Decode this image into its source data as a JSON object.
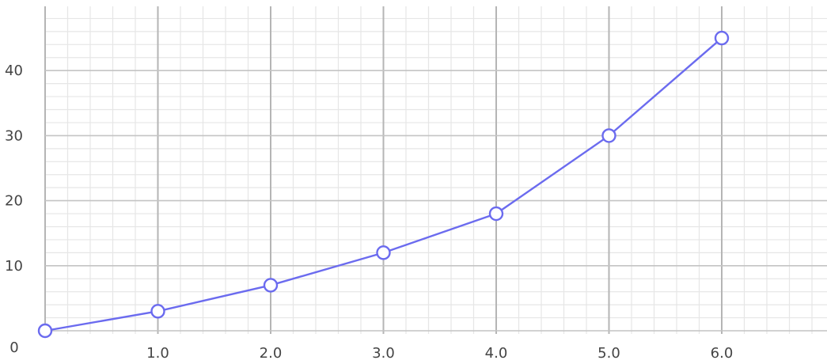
{
  "chart_data": {
    "type": "line",
    "title": "",
    "xlabel": "",
    "ylabel": "",
    "x": [
      0,
      1,
      2,
      3,
      4,
      5,
      6
    ],
    "series": [
      {
        "values": [
          0,
          3,
          7,
          12,
          18,
          30,
          45
        ],
        "color": "#6b6bef"
      }
    ],
    "xlim": [
      0,
      7
    ],
    "ylim": [
      -2,
      50
    ],
    "x_ticks": [
      {
        "value": 0,
        "label": "0"
      },
      {
        "value": 1,
        "label": "1.0"
      },
      {
        "value": 2,
        "label": "2.0"
      },
      {
        "value": 3,
        "label": "3.0"
      },
      {
        "value": 4,
        "label": "4.0"
      },
      {
        "value": 5,
        "label": "5.0"
      },
      {
        "value": 6,
        "label": "6.0"
      }
    ],
    "y_ticks": [
      {
        "value": 10,
        "label": "10"
      },
      {
        "value": 20,
        "label": "20"
      },
      {
        "value": 30,
        "label": "30"
      },
      {
        "value": 40,
        "label": "40"
      }
    ],
    "grid": true,
    "marker": "hollow-circle",
    "legend": "none"
  }
}
